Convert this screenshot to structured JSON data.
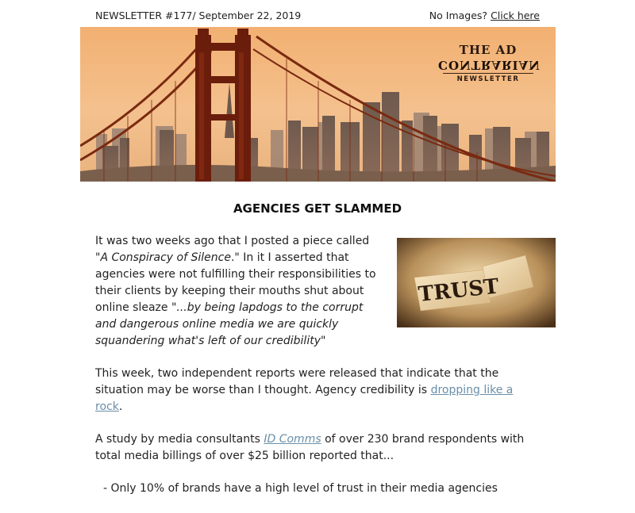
{
  "header": {
    "issue_label": "NEWSLETTER #177/ September 22, 2019",
    "no_images_label": "No Images?",
    "click_here_label": "Click here"
  },
  "banner": {
    "logo_line1": "THE AD",
    "logo_line2": "CONTRARIAN",
    "logo_line3": "NEWSLETTER"
  },
  "article": {
    "headline": "AGENCIES GET SLAMMED",
    "p1": {
      "t1": "It was two weeks ago that I posted a piece called ",
      "q1": "\"A Conspiracy of Silence",
      "t2": ".\" In it I asserted that agencies were not fulfilling their responsibilities to their clients by keeping their mouths shut about online sleaze ",
      "q2": "\"...by being lapdogs to the corrupt and dangerous online media we are quickly squandering what's left of our credibility\""
    },
    "p2": {
      "t1": "This week, two independent reports were released that indicate that the situation may be worse than I thought. Agency credibility is ",
      "link": "dropping like a rock",
      "t2": "."
    },
    "p3": {
      "t1": "A study by media consultants ",
      "link": "ID Comms",
      "t2": " of over 230 brand respondents with total media billings of over $25 billion reported that..."
    },
    "bullet1": "- Only 10% of brands have a high level of trust in their media agencies"
  },
  "trust_image": {
    "word": "TRUST"
  }
}
